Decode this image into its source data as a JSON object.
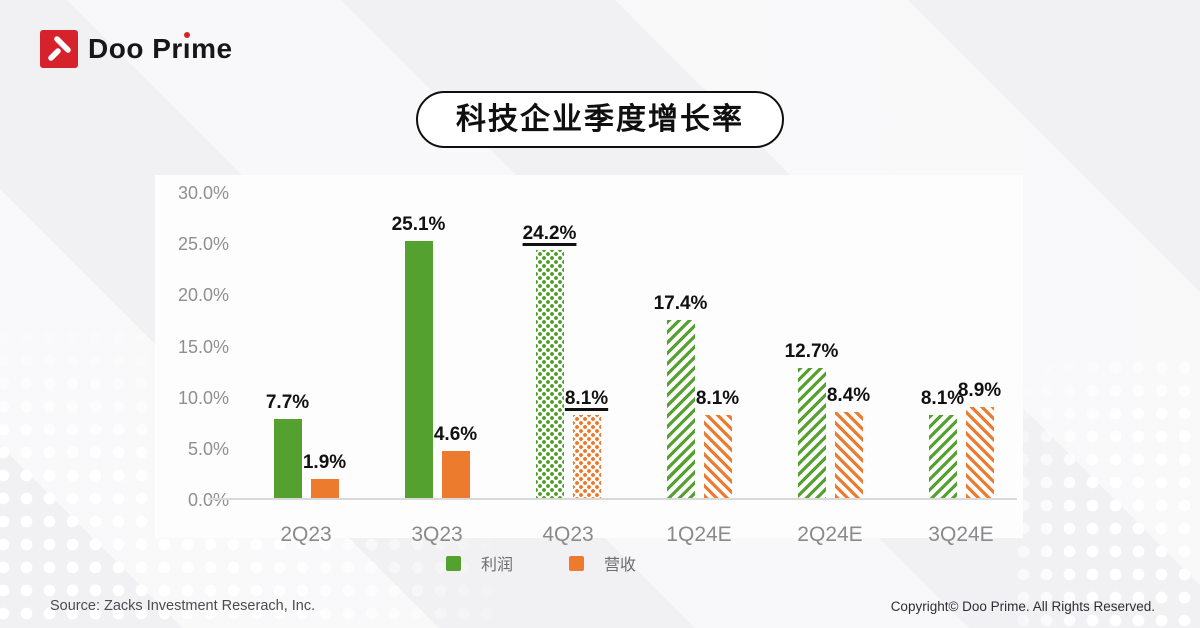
{
  "brand": {
    "logo_text": "Doo Prime"
  },
  "title": "科技企业季度增长率",
  "chart_data": {
    "type": "bar",
    "title": "科技企业季度增长率",
    "categories": [
      "2Q23",
      "3Q23",
      "4Q23",
      "1Q24E",
      "2Q24E",
      "3Q24E"
    ],
    "series": [
      {
        "name": "利润",
        "color": "#54a12f",
        "values": [
          7.7,
          25.1,
          24.2,
          17.4,
          12.7,
          8.1
        ],
        "labels": [
          "7.7%",
          "25.1%",
          "24.2%",
          "17.4%",
          "12.7%",
          "8.1%"
        ],
        "patterns": [
          "solid",
          "solid",
          "dots",
          "stripes",
          "stripes",
          "stripes"
        ]
      },
      {
        "name": "营收",
        "color": "#ec7b2d",
        "values": [
          1.9,
          4.6,
          8.1,
          8.1,
          8.4,
          8.9
        ],
        "labels": [
          "1.9%",
          "4.6%",
          "8.1%",
          "8.1%",
          "8.4%",
          "8.9%"
        ],
        "patterns": [
          "solid",
          "solid",
          "dots",
          "stripes",
          "stripes",
          "stripes"
        ]
      }
    ],
    "underline_flags": [
      false,
      false,
      true,
      false,
      false,
      false
    ],
    "y_ticks": [
      "30.0%",
      "25.0%",
      "20.0%",
      "15.0%",
      "10.0%",
      "5.0%",
      "0.0%"
    ],
    "ylim": [
      0,
      30
    ],
    "grid": false,
    "legend": [
      "利润",
      "营收"
    ],
    "legend_position": "bottom"
  },
  "footer": {
    "source": "Source: Zacks Investment Reserach, Inc.",
    "copyright": "Copyright© Doo Prime. All Rights Reserved."
  },
  "colors": {
    "profit": "#54a12f",
    "revenue": "#ec7b2d",
    "brand_red": "#d6222a",
    "background": "#f1f1f4",
    "panel": "#fdfdfe"
  }
}
